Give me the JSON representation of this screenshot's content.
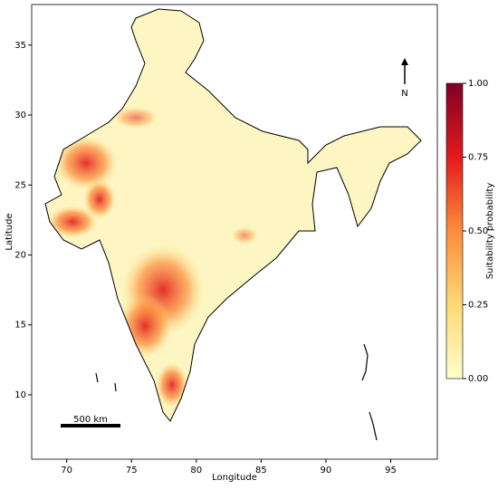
{
  "map": {
    "xlabel": "Longitude",
    "ylabel": "Latitude",
    "xlim": [
      67.3,
      98.6
    ],
    "ylim": [
      5.4,
      37.9
    ],
    "xticks": [
      70,
      75,
      80,
      85,
      90,
      95
    ],
    "yticks": [
      10,
      15,
      20,
      25,
      30,
      35
    ],
    "north_label": "N",
    "scale_bar_label": "500 km"
  },
  "colorbar": {
    "label": "Suitability probability",
    "lim": [
      0,
      1
    ],
    "colors": [
      "#ffffcc",
      "#fed976",
      "#fd8d3c",
      "#e31a1c",
      "#800026"
    ],
    "ticks": [
      {
        "value": 0,
        "label": "0.00"
      },
      {
        "value": 0.25,
        "label": "0.25"
      },
      {
        "value": 0.5,
        "label": "0.50"
      },
      {
        "value": 0.75,
        "label": "0.75"
      },
      {
        "value": 1,
        "label": "1.00"
      }
    ]
  }
}
